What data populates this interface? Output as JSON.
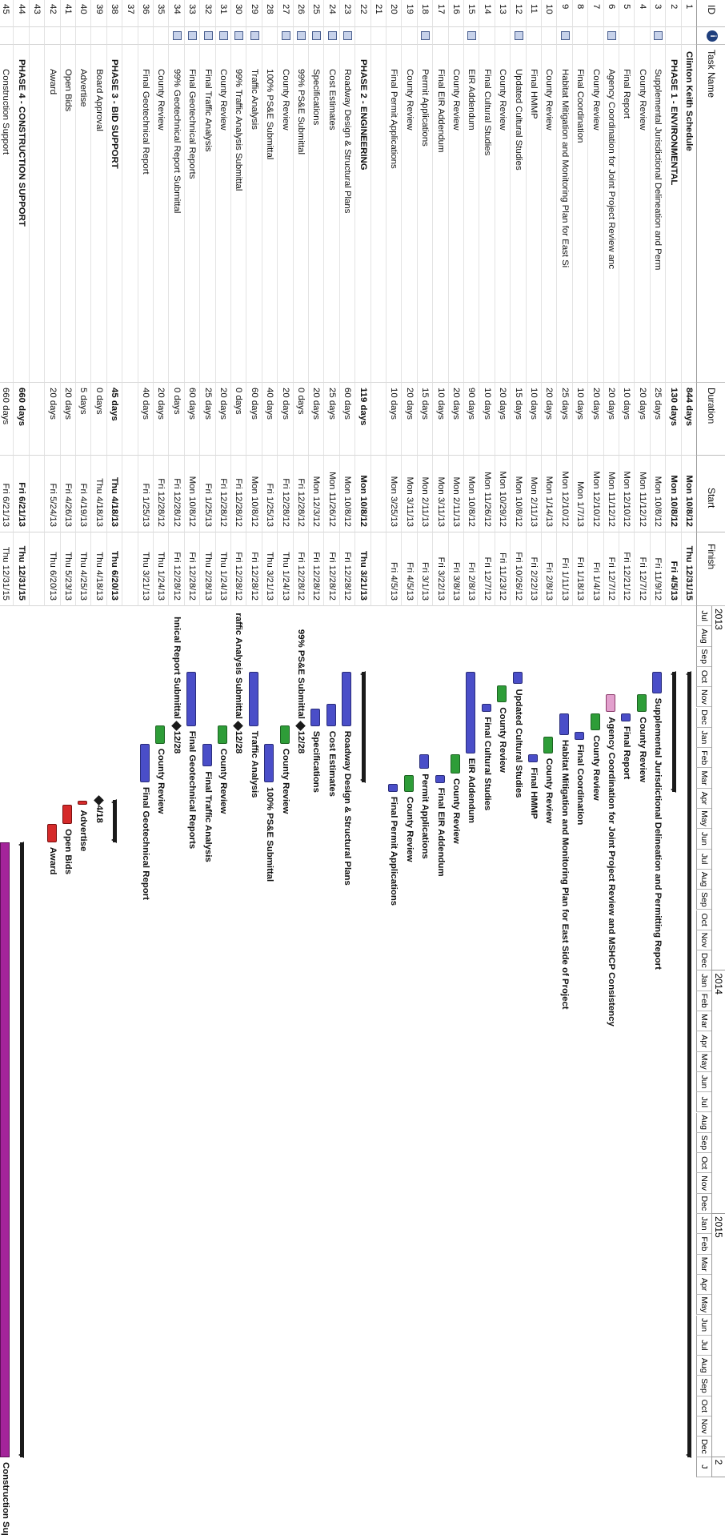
{
  "columns": {
    "id": "ID",
    "info": "i",
    "name": "Task Name",
    "duration": "Duration",
    "start": "Start",
    "finish": "Finish"
  },
  "timescale": {
    "years": [
      {
        "label": "2013",
        "months": [
          "Jul",
          "Aug",
          "Sep",
          "Oct",
          "Nov",
          "Dec",
          "Jan",
          "Feb",
          "Mar",
          "Apr",
          "May",
          "Jun",
          "Jul",
          "Aug",
          "Sep",
          "Oct",
          "Nov",
          "Dec"
        ]
      },
      {
        "label": "2014",
        "months": [
          "Jan",
          "Feb",
          "Mar",
          "Apr",
          "May",
          "Jun",
          "Jul",
          "Aug",
          "Sep",
          "Oct",
          "Nov",
          "Dec"
        ]
      },
      {
        "label": "2015",
        "months": [
          "Jan",
          "Feb",
          "Mar",
          "Apr",
          "May",
          "Jun",
          "Jul",
          "Aug",
          "Sep",
          "Oct",
          "Nov",
          "Dec"
        ]
      },
      {
        "label": "2",
        "months": [
          "J"
        ]
      }
    ]
  },
  "tasks": [
    {
      "id": "1",
      "name": "Clinton Keith Schedule",
      "duration": "844 days",
      "start": "Mon 10/8/12",
      "finish": "Thu 12/31/15",
      "bold": true,
      "note": false
    },
    {
      "id": "2",
      "name": "PHASE 1 - ENVIRONMENTAL",
      "duration": "130 days",
      "start": "Mon 10/8/12",
      "finish": "Fri 4/5/13",
      "bold": true,
      "note": false
    },
    {
      "id": "3",
      "name": "Supplemental Jurisdictional Delineation and Perm",
      "duration": "25 days",
      "start": "Mon 10/8/12",
      "finish": "Fri 11/9/12",
      "bold": false,
      "note": true
    },
    {
      "id": "4",
      "name": "County Review",
      "duration": "20 days",
      "start": "Mon 11/12/12",
      "finish": "Fri 12/7/12",
      "bold": false,
      "note": false
    },
    {
      "id": "5",
      "name": "Final Report",
      "duration": "10 days",
      "start": "Mon 12/10/12",
      "finish": "Fri 12/21/12",
      "bold": false,
      "note": false
    },
    {
      "id": "6",
      "name": "Agency Coordination for Joint Project Review anc",
      "duration": "20 days",
      "start": "Mon 11/12/12",
      "finish": "Fri 12/7/12",
      "bold": false,
      "note": true
    },
    {
      "id": "7",
      "name": "County Review",
      "duration": "20 days",
      "start": "Mon 12/10/12",
      "finish": "Fri 1/4/13",
      "bold": false,
      "note": false
    },
    {
      "id": "8",
      "name": "Final Coordination",
      "duration": "10 days",
      "start": "Mon 1/7/13",
      "finish": "Fri 1/18/13",
      "bold": false,
      "note": false
    },
    {
      "id": "9",
      "name": "Habitat Mitigation and Monitoring Plan for East Si",
      "duration": "25 days",
      "start": "Mon 12/10/12",
      "finish": "Fri 1/11/13",
      "bold": false,
      "note": true
    },
    {
      "id": "10",
      "name": "County Review",
      "duration": "20 days",
      "start": "Mon 1/14/13",
      "finish": "Fri 2/8/13",
      "bold": false,
      "note": false
    },
    {
      "id": "11",
      "name": "Final HMMP",
      "duration": "10 days",
      "start": "Mon 2/11/13",
      "finish": "Fri 2/22/13",
      "bold": false,
      "note": false
    },
    {
      "id": "12",
      "name": "Updated Cultural Studies",
      "duration": "15 days",
      "start": "Mon 10/8/12",
      "finish": "Fri 10/26/12",
      "bold": false,
      "note": true
    },
    {
      "id": "13",
      "name": "County Review",
      "duration": "20 days",
      "start": "Mon 10/29/12",
      "finish": "Fri 11/23/12",
      "bold": false,
      "note": false
    },
    {
      "id": "14",
      "name": "Final Cultural Studies",
      "duration": "10 days",
      "start": "Mon 11/26/12",
      "finish": "Fri 12/7/12",
      "bold": false,
      "note": false
    },
    {
      "id": "15",
      "name": "EIR Addendum",
      "duration": "90 days",
      "start": "Mon 10/8/12",
      "finish": "Fri 2/8/13",
      "bold": false,
      "note": true
    },
    {
      "id": "16",
      "name": "County Review",
      "duration": "20 days",
      "start": "Mon 2/11/13",
      "finish": "Fri 3/8/13",
      "bold": false,
      "note": false
    },
    {
      "id": "17",
      "name": "Final EIR Addendum",
      "duration": "10 days",
      "start": "Mon 3/11/13",
      "finish": "Fri 3/22/13",
      "bold": false,
      "note": false
    },
    {
      "id": "18",
      "name": "Permit Applications",
      "duration": "15 days",
      "start": "Mon 2/11/13",
      "finish": "Fri 3/1/13",
      "bold": false,
      "note": true
    },
    {
      "id": "19",
      "name": "County Review",
      "duration": "20 days",
      "start": "Mon 3/11/13",
      "finish": "Fri 4/5/13",
      "bold": false,
      "note": false
    },
    {
      "id": "20",
      "name": "Final Permit Applications",
      "duration": "10 days",
      "start": "Mon 3/25/13",
      "finish": "Fri 4/5/13",
      "bold": false,
      "note": false
    },
    {
      "id": "21",
      "name": "",
      "duration": "",
      "start": "",
      "finish": "",
      "bold": false,
      "note": false
    },
    {
      "id": "22",
      "name": "PHASE 2 - ENGINEERING",
      "duration": "119 days",
      "start": "Mon 10/8/12",
      "finish": "Thu 3/21/13",
      "bold": true,
      "note": false
    },
    {
      "id": "23",
      "name": "Roadway Design & Structural Plans",
      "duration": "60 days",
      "start": "Mon 10/8/12",
      "finish": "Fri 12/28/12",
      "bold": false,
      "note": true
    },
    {
      "id": "24",
      "name": "Cost Estimates",
      "duration": "25 days",
      "start": "Mon 11/26/12",
      "finish": "Fri 12/28/12",
      "bold": false,
      "note": true
    },
    {
      "id": "25",
      "name": "Specifications",
      "duration": "20 days",
      "start": "Mon 12/3/12",
      "finish": "Fri 12/28/12",
      "bold": false,
      "note": true
    },
    {
      "id": "26",
      "name": "99% PS&E Submittal",
      "duration": "0 days",
      "start": "Fri 12/28/12",
      "finish": "Fri 12/28/12",
      "bold": false,
      "note": true
    },
    {
      "id": "27",
      "name": "County Review",
      "duration": "20 days",
      "start": "Fri 12/28/12",
      "finish": "Thu 1/24/13",
      "bold": false,
      "note": true
    },
    {
      "id": "28",
      "name": "100% PS&E Submittal",
      "duration": "40 days",
      "start": "Fri 1/25/13",
      "finish": "Thu 3/21/13",
      "bold": false,
      "note": false
    },
    {
      "id": "29",
      "name": "Traffic Analysis",
      "duration": "60 days",
      "start": "Mon 10/8/12",
      "finish": "Fri 12/28/12",
      "bold": false,
      "note": true
    },
    {
      "id": "30",
      "name": "99% Traffic Analysis Submittal",
      "duration": "0 days",
      "start": "Fri 12/28/12",
      "finish": "Fri 12/28/12",
      "bold": false,
      "note": true
    },
    {
      "id": "31",
      "name": "County Review",
      "duration": "20 days",
      "start": "Fri 12/28/12",
      "finish": "Thu 1/24/13",
      "bold": false,
      "note": true
    },
    {
      "id": "32",
      "name": "Final Traffic Analysis",
      "duration": "25 days",
      "start": "Fri 1/25/13",
      "finish": "Thu 2/28/13",
      "bold": false,
      "note": true
    },
    {
      "id": "33",
      "name": "Final Geotechnical Reports",
      "duration": "60 days",
      "start": "Mon 10/8/12",
      "finish": "Fri 12/28/12",
      "bold": false,
      "note": true
    },
    {
      "id": "34",
      "name": "99% Geotechnical Report Submittal",
      "duration": "0 days",
      "start": "Fri 12/28/12",
      "finish": "Fri 12/28/12",
      "bold": false,
      "note": true
    },
    {
      "id": "35",
      "name": "County Review",
      "duration": "20 days",
      "start": "Fri 12/28/12",
      "finish": "Thu 1/24/13",
      "bold": false,
      "note": false
    },
    {
      "id": "36",
      "name": "Final Geotechnical Report",
      "duration": "40 days",
      "start": "Fri 1/25/13",
      "finish": "Thu 3/21/13",
      "bold": false,
      "note": false
    },
    {
      "id": "37",
      "name": "",
      "duration": "",
      "start": "",
      "finish": "",
      "bold": false,
      "note": false
    },
    {
      "id": "38",
      "name": "PHASE 3 - BID SUPPORT",
      "duration": "45 days",
      "start": "Thu 4/18/13",
      "finish": "Thu 6/20/13",
      "bold": true,
      "note": false
    },
    {
      "id": "39",
      "name": "Board Approval",
      "duration": "0 days",
      "start": "Thu 4/18/13",
      "finish": "Thu 4/18/13",
      "bold": false,
      "note": false
    },
    {
      "id": "40",
      "name": "Advertise",
      "duration": "5 days",
      "start": "Fri 4/19/13",
      "finish": "Thu 4/25/13",
      "bold": false,
      "note": false
    },
    {
      "id": "41",
      "name": "Open Bids",
      "duration": "20 days",
      "start": "Fri 4/26/13",
      "finish": "Thu 5/23/13",
      "bold": false,
      "note": false
    },
    {
      "id": "42",
      "name": "Award",
      "duration": "20 days",
      "start": "Fri 5/24/13",
      "finish": "Thu 6/20/13",
      "bold": false,
      "note": false
    },
    {
      "id": "43",
      "name": "",
      "duration": "",
      "start": "",
      "finish": "",
      "bold": false,
      "note": false
    },
    {
      "id": "44",
      "name": "PHASE 4 - CONSTRUCTION SUPPORT",
      "duration": "660 days",
      "start": "Fri 6/21/13",
      "finish": "Thu 12/31/15",
      "bold": true,
      "note": false
    },
    {
      "id": "45",
      "name": "Construction Support",
      "duration": "660 days",
      "start": "Fri 6/21/13",
      "finish": "Thu 12/31/15",
      "bold": false,
      "note": false
    }
  ],
  "gantt_labels": [
    {
      "row": 3,
      "text": "Supplemental Jurisdictional Delineation and Permitting Report"
    },
    {
      "row": 4,
      "text": "County Review"
    },
    {
      "row": 5,
      "text": "Final Report"
    },
    {
      "row": 6,
      "text": "Agency Coordination for Joint Project Review and MSHCP Consistency"
    },
    {
      "row": 7,
      "text": "County Review"
    },
    {
      "row": 8,
      "text": "Final Coordination"
    },
    {
      "row": 9,
      "text": "Habitat Mitigation and Monitoring Plan for East Side of Project"
    },
    {
      "row": 10,
      "text": "County Review"
    },
    {
      "row": 11,
      "text": "Final HMMP"
    },
    {
      "row": 12,
      "text": "Updated Cultural Studies"
    },
    {
      "row": 13,
      "text": "County Review"
    },
    {
      "row": 14,
      "text": "Final Cultural Studies"
    },
    {
      "row": 15,
      "text": "EIR Addendum"
    },
    {
      "row": 16,
      "text": "County Review"
    },
    {
      "row": 17,
      "text": "Final EIR Addendum"
    },
    {
      "row": 18,
      "text": "Permit Applications"
    },
    {
      "row": 19,
      "text": "County Review"
    },
    {
      "row": 20,
      "text": "Final Permit Applications"
    },
    {
      "row": 23,
      "text": "Roadway Design & Structural Plans"
    },
    {
      "row": 24,
      "text": "Cost Estimates"
    },
    {
      "row": 25,
      "text": "Specifications"
    },
    {
      "row": 26,
      "text": "12/28"
    },
    {
      "row": 27,
      "text": "County Review"
    },
    {
      "row": 28,
      "text": "100% PS&E Submittal"
    },
    {
      "row": 29,
      "text": "Traffic Analysis"
    },
    {
      "row": 30,
      "text": "12/28"
    },
    {
      "row": 31,
      "text": "County Review"
    },
    {
      "row": 32,
      "text": "Final Traffic Analysis"
    },
    {
      "row": 33,
      "text": "Final Geotechnical Reports"
    },
    {
      "row": 34,
      "text": "12/28"
    },
    {
      "row": 35,
      "text": "County Review"
    },
    {
      "row": 36,
      "text": "Final Geotechnical Report"
    },
    {
      "row": 39,
      "text": "4/18"
    },
    {
      "row": 40,
      "text": "Advertise"
    },
    {
      "row": 41,
      "text": "Open Bids"
    },
    {
      "row": 42,
      "text": "Award"
    },
    {
      "row": 45,
      "text": "Construction Support"
    }
  ],
  "gantt_left_labels": [
    {
      "row": 26,
      "text": "99% PS&E Submittal"
    },
    {
      "row": 30,
      "text": "raffic Analysis Submittal"
    },
    {
      "row": 34,
      "text": "hnical Report Submittal"
    }
  ],
  "colors": {
    "task": "#4a4ec8",
    "review": "#2e9d38",
    "critical": "#d52a2a",
    "final": "#e2a0cd",
    "construction": "#a4249a",
    "summary": "#1a1a1a"
  }
}
